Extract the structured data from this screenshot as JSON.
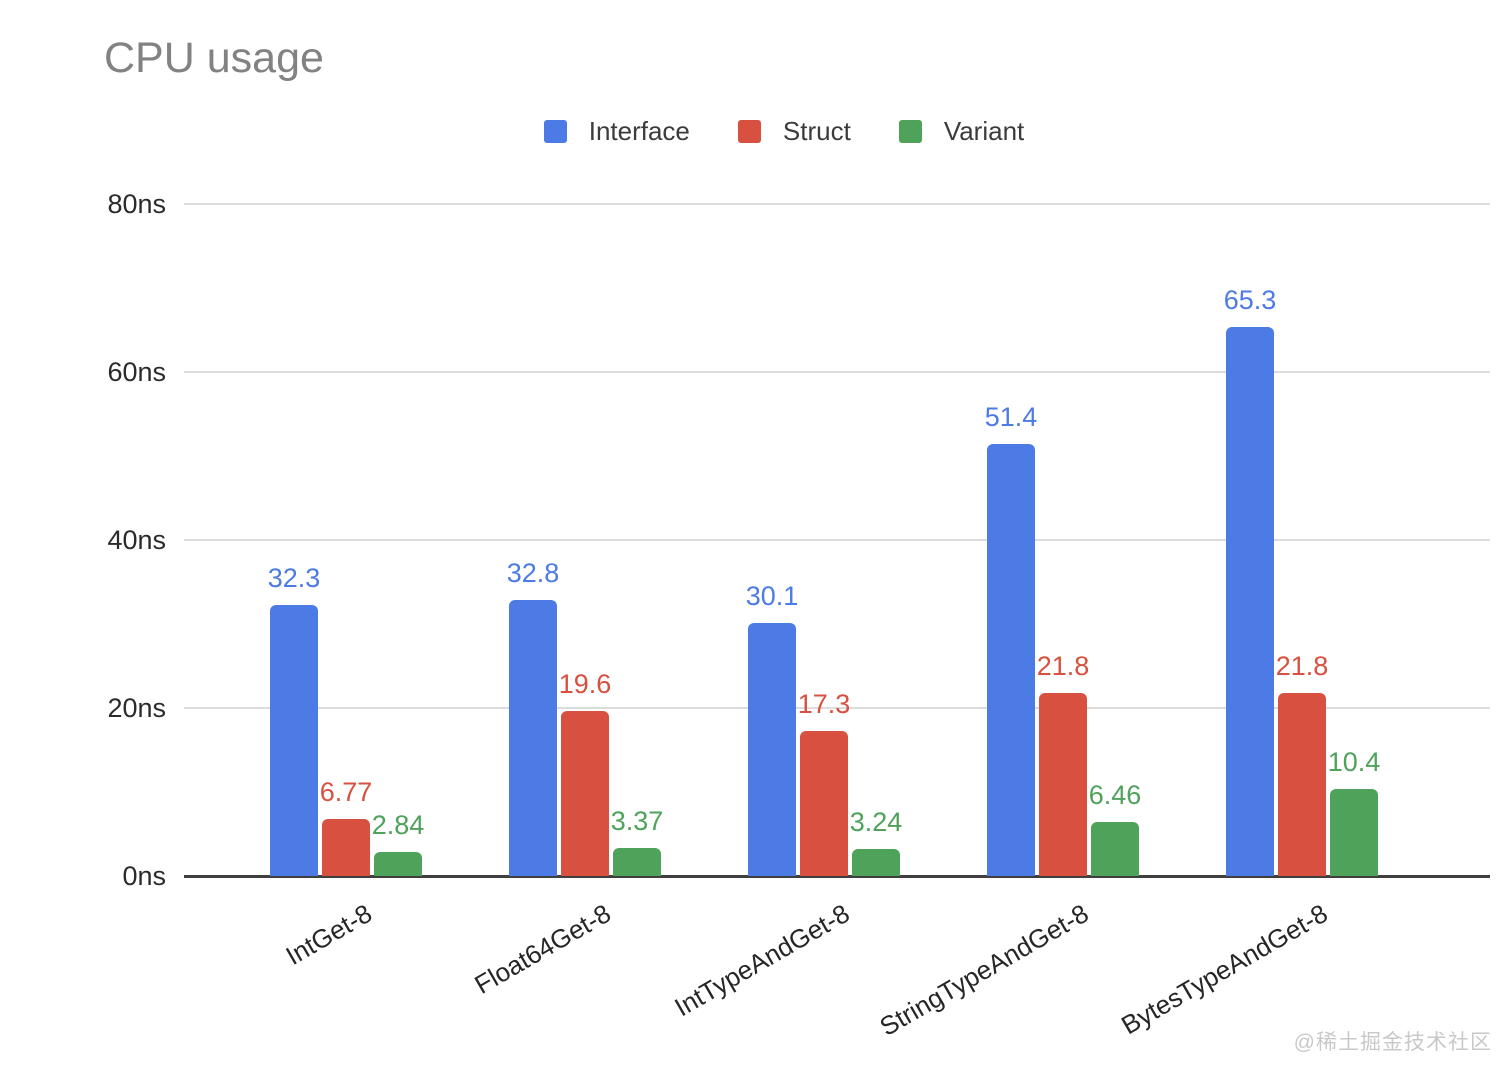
{
  "watermark": "@稀土掘金技术社区",
  "chart_data": {
    "type": "bar",
    "title": "CPU usage",
    "categories": [
      "IntGet-8",
      "Float64Get-8",
      "IntTypeAndGet-8",
      "StringTypeAndGet-8",
      "BytesTypeAndGet-8"
    ],
    "series": [
      {
        "name": "Interface",
        "color": "#4d7be5",
        "values": [
          32.3,
          32.8,
          30.1,
          51.4,
          65.3
        ]
      },
      {
        "name": "Struct",
        "color": "#d8503f",
        "values": [
          6.77,
          19.6,
          17.3,
          21.8,
          21.8
        ]
      },
      {
        "name": "Variant",
        "color": "#4fa25a",
        "values": [
          2.84,
          3.37,
          3.24,
          6.46,
          10.4
        ]
      }
    ],
    "xlabel": "",
    "ylabel": "",
    "yticks": [
      "0ns",
      "20ns",
      "40ns",
      "60ns",
      "80ns"
    ],
    "ylim": [
      0,
      80
    ],
    "grid": true,
    "legend_position": "top",
    "value_labels": true,
    "bar_color_roles": {
      "accent_blue": "#4d7be5",
      "accent_red": "#d8503f",
      "accent_green": "#4fa25a",
      "title_gray": "#828282",
      "axis_text": "#2b2b2b",
      "gridline": "#dcdcdc",
      "baseline": "#3f3f3f"
    }
  }
}
